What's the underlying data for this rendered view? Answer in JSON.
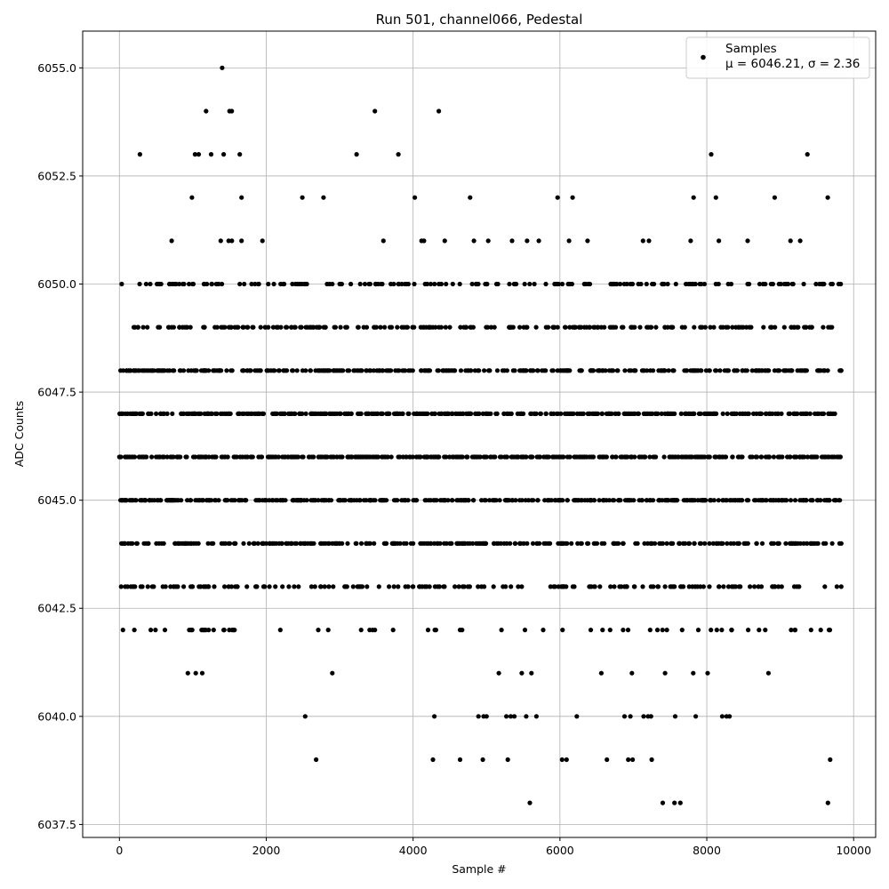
{
  "chart_data": {
    "type": "scatter",
    "title": "Run 501, channel066, Pedestal",
    "xlabel": "Sample #",
    "ylabel": "ADC Counts",
    "xlim": [
      -500,
      10300
    ],
    "ylim": [
      6037.2,
      6055.85
    ],
    "x_ticks": [
      0,
      2000,
      4000,
      6000,
      8000,
      10000
    ],
    "x_tick_labels": [
      "0",
      "2000",
      "4000",
      "6000",
      "8000",
      "10000"
    ],
    "y_ticks": [
      6037.5,
      6040.0,
      6042.5,
      6045.0,
      6047.5,
      6050.0,
      6052.5,
      6055.0
    ],
    "y_tick_labels": [
      "6037.5",
      "6040.0",
      "6042.5",
      "6045.0",
      "6047.5",
      "6050.0",
      "6052.5",
      "6055.0"
    ],
    "grid": true,
    "legend": {
      "placement": "upper-right",
      "entries": [
        "Samples",
        "μ = 6046.21, σ = 2.36"
      ]
    },
    "marker_color": "#000000",
    "n_samples": 9840,
    "series": [
      {
        "name": "Samples",
        "sparse_points": [
          [
            1400,
            6055
          ],
          [
            1180,
            6054
          ],
          [
            1500,
            6054
          ],
          [
            1530,
            6054
          ],
          [
            3480,
            6054
          ],
          [
            4350,
            6054
          ],
          [
            280,
            6053
          ],
          [
            1030,
            6053
          ],
          [
            1080,
            6053
          ],
          [
            1250,
            6053
          ],
          [
            1420,
            6053
          ],
          [
            1640,
            6053
          ],
          [
            3230,
            6053
          ],
          [
            3800,
            6053
          ],
          [
            8060,
            6053
          ],
          [
            9370,
            6053
          ],
          [
            5590,
            6038
          ],
          [
            7400,
            6038
          ],
          [
            7560,
            6038
          ],
          [
            7640,
            6038
          ],
          [
            9650,
            6038
          ],
          [
            2680,
            6039
          ],
          [
            4270,
            6039
          ],
          [
            4640,
            6039
          ],
          [
            4950,
            6039
          ],
          [
            5290,
            6039
          ],
          [
            6030,
            6039
          ],
          [
            6090,
            6039
          ],
          [
            6640,
            6039
          ],
          [
            6930,
            6039
          ],
          [
            6990,
            6039
          ],
          [
            7250,
            6039
          ],
          [
            9680,
            6039
          ],
          [
            2530,
            6040
          ],
          [
            4290,
            6040
          ],
          [
            4890,
            6040
          ],
          [
            4960,
            6040
          ],
          [
            5000,
            6040
          ],
          [
            5270,
            6040
          ],
          [
            5330,
            6040
          ],
          [
            5380,
            6040
          ],
          [
            5540,
            6040
          ],
          [
            5680,
            6040
          ],
          [
            6230,
            6040
          ],
          [
            6880,
            6040
          ],
          [
            6960,
            6040
          ],
          [
            7140,
            6040
          ],
          [
            7200,
            6040
          ],
          [
            7240,
            6040
          ],
          [
            7570,
            6040
          ],
          [
            7850,
            6040
          ],
          [
            8210,
            6040
          ],
          [
            8270,
            6040
          ],
          [
            8310,
            6040
          ]
        ],
        "bands": [
          {
            "y": 6052,
            "start": 0,
            "end": 9840,
            "density": 0.004
          },
          {
            "y": 6051,
            "start": 0,
            "end": 9840,
            "density": 0.012
          },
          {
            "y": 6050,
            "start": 0,
            "end": 9840,
            "density": 0.07
          },
          {
            "y": 6049,
            "start": 0,
            "end": 9840,
            "density": 0.09
          },
          {
            "y": 6048,
            "start": 0,
            "end": 9840,
            "density": 0.14
          },
          {
            "y": 6047,
            "start": 0,
            "end": 9840,
            "density": 0.16
          },
          {
            "y": 6046,
            "start": 0,
            "end": 9840,
            "density": 0.17
          },
          {
            "y": 6045,
            "start": 0,
            "end": 9840,
            "density": 0.16
          },
          {
            "y": 6044,
            "start": 0,
            "end": 9840,
            "density": 0.12
          },
          {
            "y": 6043,
            "start": 0,
            "end": 9840,
            "density": 0.07
          },
          {
            "y": 6042,
            "start": 0,
            "end": 9840,
            "density": 0.03
          },
          {
            "y": 6041,
            "start": 0,
            "end": 9840,
            "density": 0.008
          }
        ]
      }
    ]
  }
}
